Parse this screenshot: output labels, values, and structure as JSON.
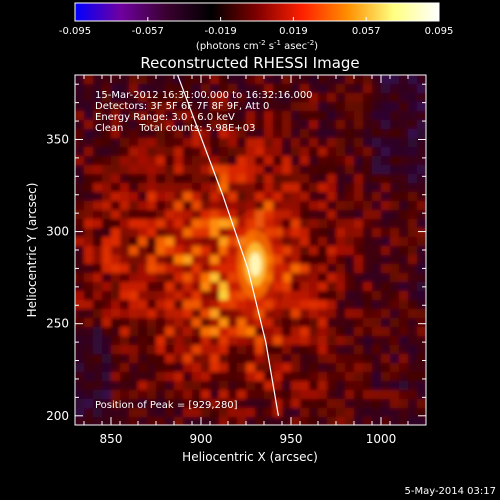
{
  "chart_data": {
    "type": "heatmap",
    "title": "Reconstructed RHESSI Image",
    "xlabel": "Heliocentric X (arcsec)",
    "ylabel": "Heliocentric Y (arcsec)",
    "xlim": [
      830,
      1025
    ],
    "ylim": [
      195,
      385
    ],
    "x_ticks": [
      850,
      900,
      950,
      1000
    ],
    "y_ticks": [
      200,
      250,
      300,
      350
    ],
    "colorbar": {
      "ticks": [
        "-0.095",
        "-0.057",
        "-0.019",
        "0.019",
        "0.057",
        "0.095"
      ],
      "range": [
        -0.095,
        0.095
      ],
      "label_main": "(photons cm",
      "label_exp1": "-2",
      "label_mid": " s",
      "label_exp2": "-1",
      "label_tail": " asec",
      "label_exp3": "-2",
      "label_close": ")",
      "colors": [
        "#0000ff",
        "#7000a0",
        "#3a0030",
        "#000000",
        "#800000",
        "#ff2000",
        "#ff9000",
        "#ffff80",
        "#ffffff"
      ]
    },
    "info_lines": [
      "15-Mar-2012 16:31:00.000 to 16:32:16.000",
      "Detectors: 3F 5F 6F 7F 8F 9F, Att 0",
      "Energy Range: 3.0 - 6.0 keV",
      "Clean     Total counts: 5.98E+03"
    ],
    "peak_text": "Position of Peak = [929,280]",
    "peak": [
      929,
      280
    ],
    "limb_points": [
      [
        887,
        385
      ],
      [
        912,
        320
      ],
      [
        926,
        280
      ],
      [
        936,
        240
      ],
      [
        943,
        200
      ]
    ],
    "timestamp": "5-May-2014 03:17"
  }
}
